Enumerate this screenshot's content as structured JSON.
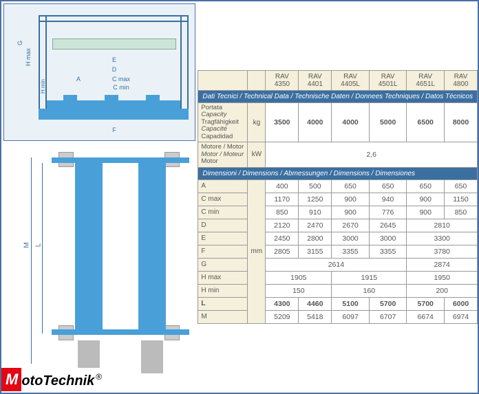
{
  "logo": {
    "part1": "M",
    "part2": "oto",
    "part3": "T",
    "part4": "echnik",
    "reg": "®"
  },
  "diagram_labels": {
    "G": "G",
    "Hmax": "H max",
    "Hmin": "H min",
    "A": "A",
    "Cmax": "C max",
    "Cmin": "C min",
    "D": "D",
    "E": "E",
    "F": "F",
    "L": "L",
    "M": "M"
  },
  "table": {
    "models": [
      "RAV 4350",
      "RAV 4401",
      "RAV 4405L",
      "RAV 4501L",
      "RAV 4651L",
      "RAV 4800"
    ],
    "sec1_title": "Dati Tecnici / Technical Data / Technische Daten / Donnees Techniques / Datos Técnicos",
    "capacity_labels": [
      "Portata",
      "Capacity",
      "Tragfähigkeit",
      "Capacité",
      "Capadidad"
    ],
    "capacity_unit": "kg",
    "capacity_values": [
      "3500",
      "4000",
      "4000",
      "5000",
      "6500",
      "8000"
    ],
    "motor_labels": [
      "Motore / Motor",
      "Motor / Moteur",
      "Motor"
    ],
    "motor_unit": "kW",
    "motor_value": "2,6",
    "sec2_title": "Dimensioni / Dimensions / Abmessungen / Dimensions / Dimensiones",
    "dim_unit": "mm",
    "rows": [
      {
        "l": "A",
        "cells": [
          {
            "v": "400",
            "s": 1
          },
          {
            "v": "500",
            "s": 1
          },
          {
            "v": "650",
            "s": 1
          },
          {
            "v": "650",
            "s": 1
          },
          {
            "v": "650",
            "s": 1
          },
          {
            "v": "650",
            "s": 1
          }
        ]
      },
      {
        "l": "C max",
        "cells": [
          {
            "v": "1170",
            "s": 1
          },
          {
            "v": "1250",
            "s": 1
          },
          {
            "v": "900",
            "s": 1
          },
          {
            "v": "940",
            "s": 1
          },
          {
            "v": "900",
            "s": 1
          },
          {
            "v": "1150",
            "s": 1
          }
        ]
      },
      {
        "l": "C min",
        "cells": [
          {
            "v": "850",
            "s": 1
          },
          {
            "v": "910",
            "s": 1
          },
          {
            "v": "900",
            "s": 1
          },
          {
            "v": "776",
            "s": 1
          },
          {
            "v": "900",
            "s": 1
          },
          {
            "v": "850",
            "s": 1
          }
        ]
      },
      {
        "l": "D",
        "cells": [
          {
            "v": "2120",
            "s": 1
          },
          {
            "v": "2470",
            "s": 1
          },
          {
            "v": "2670",
            "s": 1
          },
          {
            "v": "2645",
            "s": 1
          },
          {
            "v": "2810",
            "s": 2
          }
        ]
      },
      {
        "l": "E",
        "cells": [
          {
            "v": "2450",
            "s": 1
          },
          {
            "v": "2800",
            "s": 1
          },
          {
            "v": "3000",
            "s": 1
          },
          {
            "v": "3000",
            "s": 1
          },
          {
            "v": "3300",
            "s": 2
          }
        ]
      },
      {
        "l": "F",
        "cells": [
          {
            "v": "2805",
            "s": 1
          },
          {
            "v": "3155",
            "s": 1
          },
          {
            "v": "3355",
            "s": 1
          },
          {
            "v": "3355",
            "s": 1
          },
          {
            "v": "3780",
            "s": 2
          }
        ]
      },
      {
        "l": "G",
        "cells": [
          {
            "v": "2614",
            "s": 4
          },
          {
            "v": "2874",
            "s": 2
          }
        ]
      },
      {
        "l": "H max",
        "cells": [
          {
            "v": "1905",
            "s": 2
          },
          {
            "v": "1915",
            "s": 2
          },
          {
            "v": "1950",
            "s": 2
          }
        ]
      },
      {
        "l": "H min",
        "cells": [
          {
            "v": "150",
            "s": 2
          },
          {
            "v": "160",
            "s": 2
          },
          {
            "v": "200",
            "s": 2
          }
        ]
      },
      {
        "l": "L",
        "bold": true,
        "cells": [
          {
            "v": "4300",
            "s": 1
          },
          {
            "v": "4460",
            "s": 1
          },
          {
            "v": "5100",
            "s": 1
          },
          {
            "v": "5700",
            "s": 1
          },
          {
            "v": "5700",
            "s": 1
          },
          {
            "v": "6000",
            "s": 1
          }
        ]
      },
      {
        "l": "M",
        "cells": [
          {
            "v": "5209",
            "s": 1
          },
          {
            "v": "5418",
            "s": 1
          },
          {
            "v": "6097",
            "s": 1
          },
          {
            "v": "6707",
            "s": 1
          },
          {
            "v": "6674",
            "s": 1
          },
          {
            "v": "6974",
            "s": 1
          }
        ]
      }
    ]
  },
  "colors": {
    "frame_border": "#4a6fa5",
    "section_bg": "#3b6fa0",
    "header_bg": "#f5f0dc",
    "beam": "#49a0d8",
    "platform": "#cce5d8",
    "logo_red": "#e30613"
  }
}
